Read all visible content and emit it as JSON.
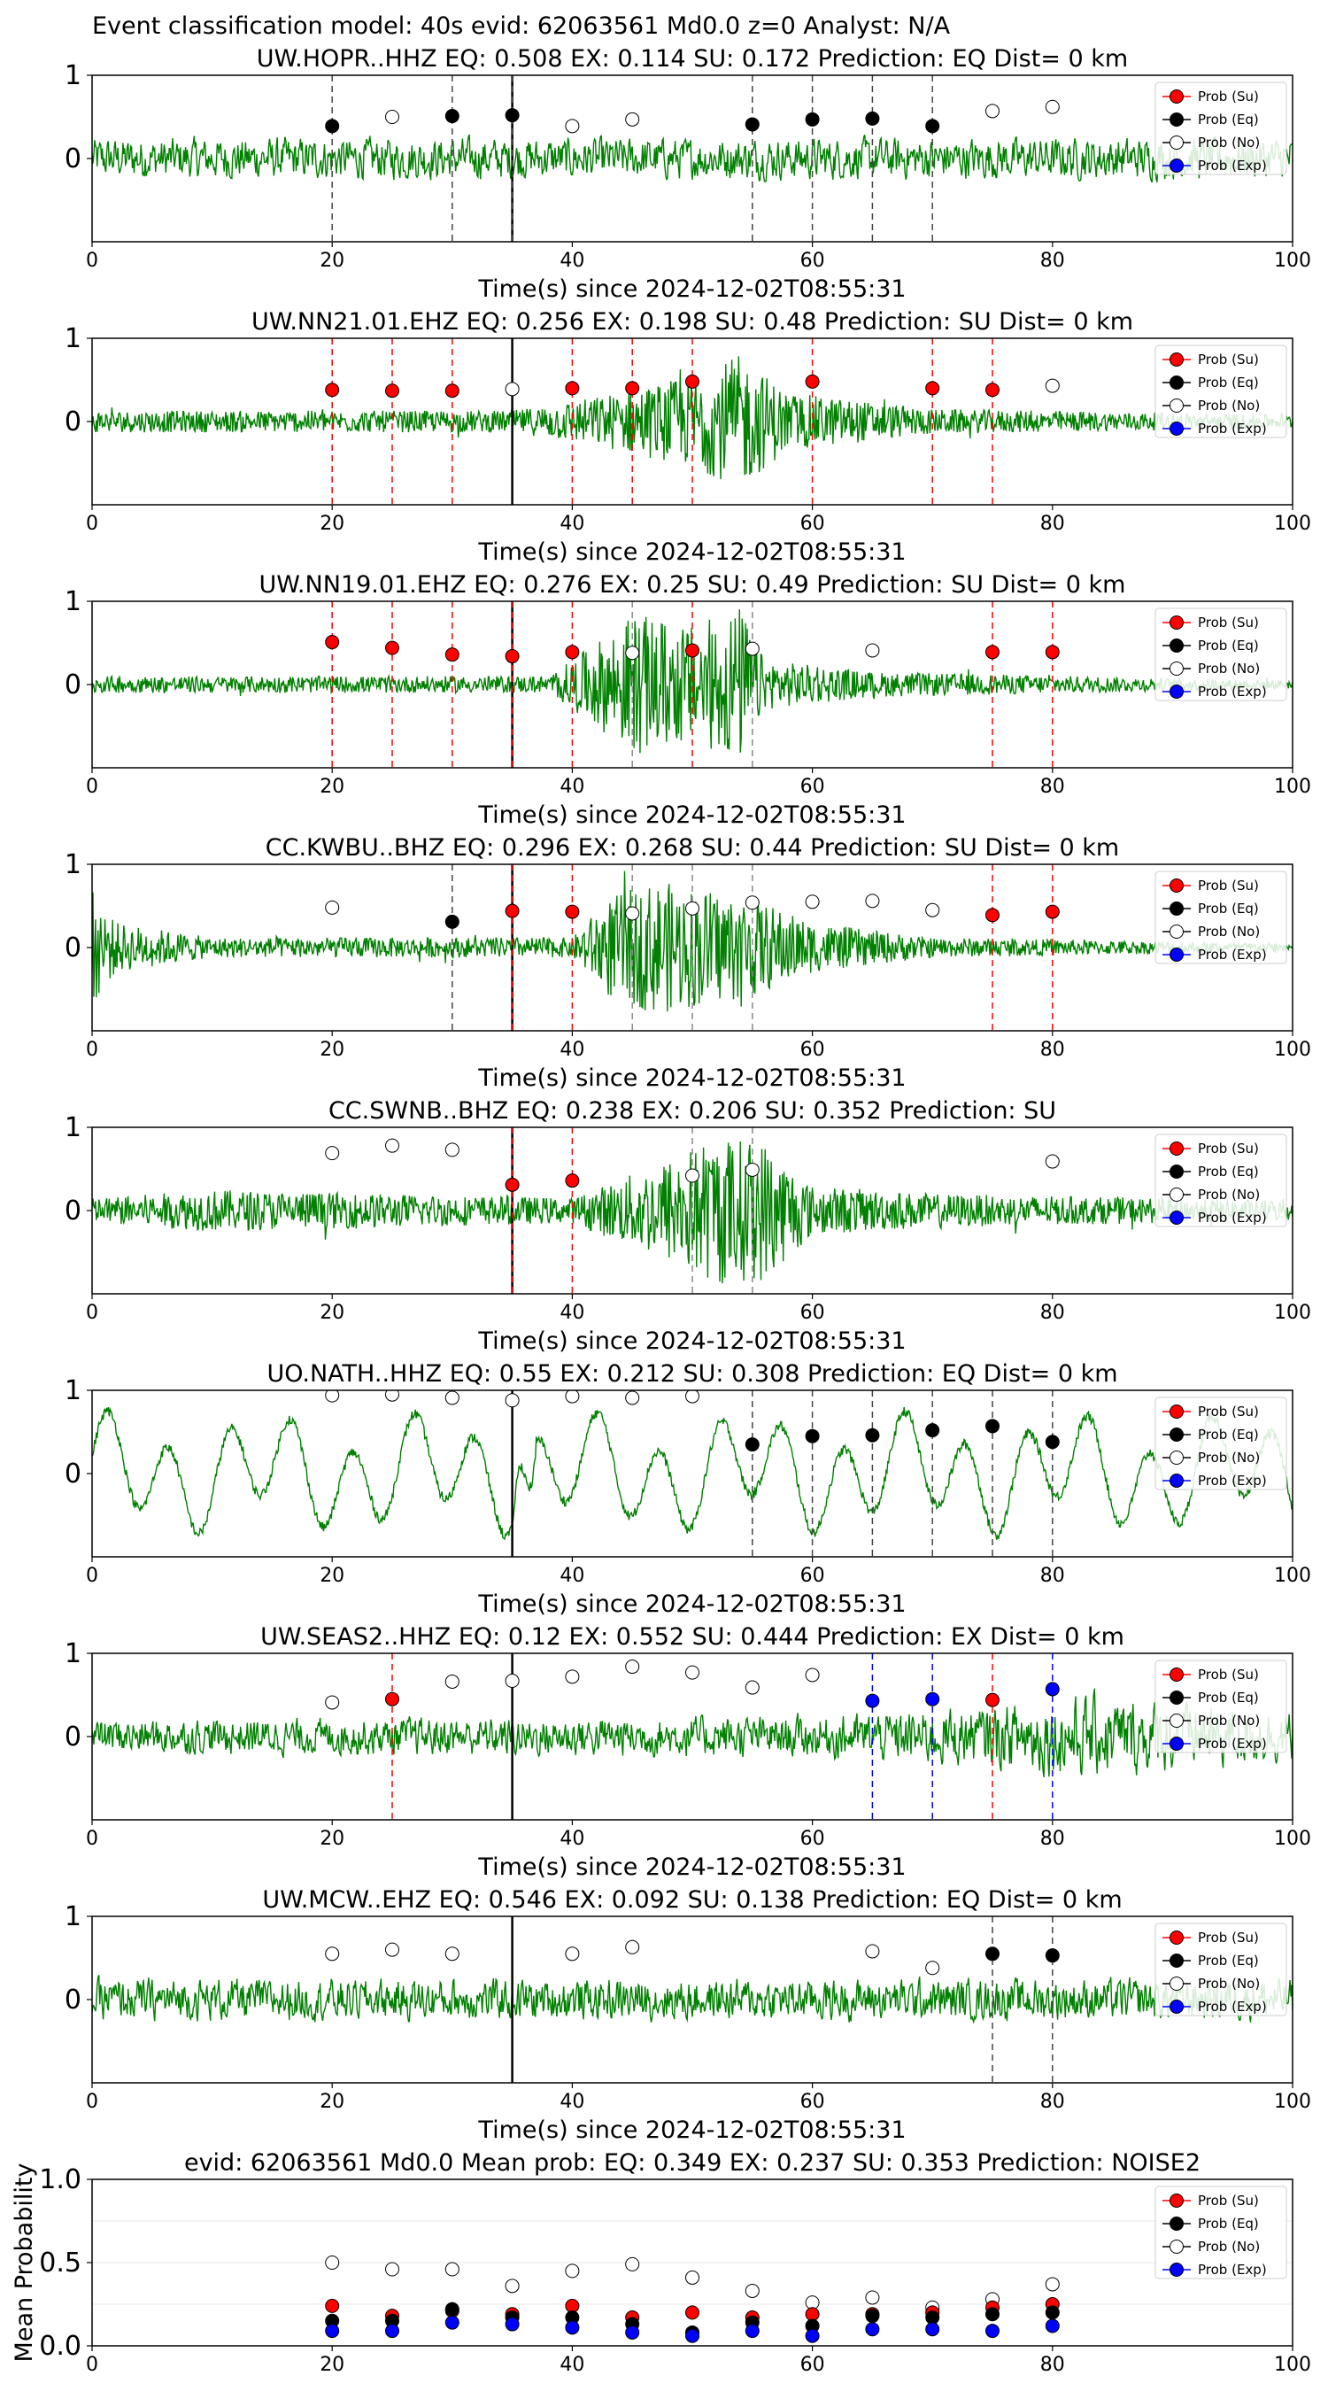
{
  "figure_title": "Event classification model: 40s evid: 62063561 Md0.0 z=0 Analyst: N/A",
  "legend_labels": [
    "Prob (Su)",
    "Prob (Eq)",
    "Prob (No)",
    "Prob (Exp)"
  ],
  "colors": {
    "waveform": "#008000",
    "su": "#ff0000",
    "eq": "#000000",
    "no": "#ffffff",
    "exp": "#0000ff",
    "pick_line": "#000000"
  },
  "chart_data": [
    {
      "type": "line",
      "title": "UW.HOPR..HHZ   EQ: 0.508  EX: 0.114  SU: 0.172   Prediction: EQ    Dist= 0 km",
      "xlabel": "Time(s) since 2024-12-02T08:55:31",
      "ylabel": "",
      "xlim": [
        0,
        100
      ],
      "ylim": [
        -1,
        1
      ],
      "x_ticks": [
        "0",
        "20",
        "40",
        "60",
        "80",
        "100"
      ],
      "y_ticks": [
        "0",
        "1"
      ],
      "pick_time": 35,
      "waveform": {
        "style": "noise",
        "envelope": []
      },
      "points": [
        {
          "x": 20,
          "y": 0.39,
          "class": "eq",
          "line": true
        },
        {
          "x": 25,
          "y": 0.5,
          "class": "no",
          "line": false
        },
        {
          "x": 30,
          "y": 0.51,
          "class": "eq",
          "line": true
        },
        {
          "x": 35,
          "y": 0.52,
          "class": "eq",
          "line": true
        },
        {
          "x": 40,
          "y": 0.39,
          "class": "no",
          "line": false
        },
        {
          "x": 45,
          "y": 0.47,
          "class": "no",
          "line": false
        },
        {
          "x": 55,
          "y": 0.41,
          "class": "eq",
          "line": true
        },
        {
          "x": 60,
          "y": 0.47,
          "class": "eq",
          "line": true
        },
        {
          "x": 65,
          "y": 0.48,
          "class": "eq",
          "line": true
        },
        {
          "x": 70,
          "y": 0.39,
          "class": "eq",
          "line": true
        },
        {
          "x": 75,
          "y": 0.57,
          "class": "no",
          "line": false
        },
        {
          "x": 80,
          "y": 0.62,
          "class": "no",
          "line": false
        }
      ]
    },
    {
      "type": "line",
      "title": "UW.NN21.01.EHZ   EQ: 0.256  EX: 0.198  SU: 0.48   Prediction: SU    Dist= 0 km",
      "xlabel": "Time(s) since 2024-12-02T08:55:31",
      "ylabel": "",
      "xlim": [
        0,
        100
      ],
      "ylim": [
        -1,
        1
      ],
      "x_ticks": [
        "0",
        "20",
        "40",
        "60",
        "80",
        "100"
      ],
      "y_ticks": [
        "0",
        "1"
      ],
      "pick_time": 35,
      "waveform": {
        "style": "burst",
        "envelope": [
          [
            0,
            0.13
          ],
          [
            35,
            0.13
          ],
          [
            42,
            0.3
          ],
          [
            50,
            0.55
          ],
          [
            54,
            0.8
          ],
          [
            58,
            0.35
          ],
          [
            70,
            0.15
          ],
          [
            100,
            0.08
          ]
        ]
      },
      "points": [
        {
          "x": 20,
          "y": 0.38,
          "class": "su",
          "line": true
        },
        {
          "x": 25,
          "y": 0.37,
          "class": "su",
          "line": true
        },
        {
          "x": 30,
          "y": 0.37,
          "class": "su",
          "line": true
        },
        {
          "x": 35,
          "y": 0.39,
          "class": "no",
          "line": false
        },
        {
          "x": 40,
          "y": 0.4,
          "class": "su",
          "line": true
        },
        {
          "x": 45,
          "y": 0.4,
          "class": "su",
          "line": true
        },
        {
          "x": 50,
          "y": 0.48,
          "class": "su",
          "line": true
        },
        {
          "x": 60,
          "y": 0.48,
          "class": "su",
          "line": true
        },
        {
          "x": 70,
          "y": 0.4,
          "class": "su",
          "line": true
        },
        {
          "x": 75,
          "y": 0.38,
          "class": "su",
          "line": true
        },
        {
          "x": 80,
          "y": 0.43,
          "class": "no",
          "line": false
        }
      ]
    },
    {
      "type": "line",
      "title": "UW.NN19.01.EHZ   EQ: 0.276  EX: 0.25  SU: 0.49   Prediction: SU    Dist= 0 km",
      "xlabel": "Time(s) since 2024-12-02T08:55:31",
      "ylabel": "",
      "xlim": [
        0,
        100
      ],
      "ylim": [
        -1,
        1
      ],
      "x_ticks": [
        "0",
        "20",
        "40",
        "60",
        "80",
        "100"
      ],
      "y_ticks": [
        "0",
        "1"
      ],
      "pick_time": 35,
      "waveform": {
        "style": "burst",
        "envelope": [
          [
            0,
            0.1
          ],
          [
            38,
            0.1
          ],
          [
            42,
            0.5
          ],
          [
            45,
            0.85
          ],
          [
            50,
            0.7
          ],
          [
            54,
            0.95
          ],
          [
            56,
            0.3
          ],
          [
            65,
            0.15
          ],
          [
            100,
            0.05
          ]
        ]
      },
      "points": [
        {
          "x": 20,
          "y": 0.51,
          "class": "su",
          "line": true
        },
        {
          "x": 25,
          "y": 0.44,
          "class": "su",
          "line": true
        },
        {
          "x": 30,
          "y": 0.36,
          "class": "su",
          "line": true
        },
        {
          "x": 35,
          "y": 0.34,
          "class": "su",
          "line": true
        },
        {
          "x": 40,
          "y": 0.39,
          "class": "su",
          "line": true
        },
        {
          "x": 45,
          "y": 0.38,
          "class": "no",
          "line": true
        },
        {
          "x": 50,
          "y": 0.41,
          "class": "su",
          "line": true
        },
        {
          "x": 55,
          "y": 0.43,
          "class": "no",
          "line": true
        },
        {
          "x": 65,
          "y": 0.41,
          "class": "no",
          "line": false
        },
        {
          "x": 75,
          "y": 0.39,
          "class": "su",
          "line": true
        },
        {
          "x": 80,
          "y": 0.39,
          "class": "su",
          "line": true
        }
      ]
    },
    {
      "type": "line",
      "title": "CC.KWBU..BHZ   EQ: 0.296  EX: 0.268  SU: 0.44   Prediction: SU    Dist= 0 km",
      "xlabel": "Time(s) since 2024-12-02T08:55:31",
      "ylabel": "",
      "xlim": [
        0,
        100
      ],
      "ylim": [
        -1,
        1
      ],
      "x_ticks": [
        "0",
        "20",
        "40",
        "60",
        "80",
        "100"
      ],
      "y_ticks": [
        "0",
        "1"
      ],
      "pick_time": 35,
      "waveform": {
        "style": "burst",
        "envelope": [
          [
            0,
            0.7
          ],
          [
            2,
            0.3
          ],
          [
            10,
            0.12
          ],
          [
            40,
            0.12
          ],
          [
            43,
            0.6
          ],
          [
            47,
            0.8
          ],
          [
            55,
            0.6
          ],
          [
            60,
            0.3
          ],
          [
            70,
            0.12
          ],
          [
            100,
            0.05
          ]
        ]
      },
      "points": [
        {
          "x": 20,
          "y": 0.48,
          "class": "no",
          "line": false
        },
        {
          "x": 30,
          "y": 0.31,
          "class": "eq",
          "line": true
        },
        {
          "x": 35,
          "y": 0.44,
          "class": "su",
          "line": true
        },
        {
          "x": 40,
          "y": 0.43,
          "class": "su",
          "line": true
        },
        {
          "x": 45,
          "y": 0.41,
          "class": "no",
          "line": true
        },
        {
          "x": 50,
          "y": 0.47,
          "class": "no",
          "line": true
        },
        {
          "x": 55,
          "y": 0.54,
          "class": "no",
          "line": true
        },
        {
          "x": 60,
          "y": 0.55,
          "class": "no",
          "line": false
        },
        {
          "x": 65,
          "y": 0.56,
          "class": "no",
          "line": false
        },
        {
          "x": 70,
          "y": 0.45,
          "class": "no",
          "line": false
        },
        {
          "x": 75,
          "y": 0.39,
          "class": "su",
          "line": true
        },
        {
          "x": 80,
          "y": 0.43,
          "class": "su",
          "line": true
        }
      ]
    },
    {
      "type": "line",
      "title": "CC.SWNB..BHZ   EQ: 0.238  EX: 0.206  SU: 0.352   Prediction: SU",
      "xlabel": "Time(s) since 2024-12-02T08:55:31",
      "ylabel": "",
      "xlim": [
        0,
        100
      ],
      "ylim": [
        -1,
        1
      ],
      "x_ticks": [
        "0",
        "20",
        "40",
        "60",
        "80",
        "100"
      ],
      "y_ticks": [
        "0",
        "1"
      ],
      "pick_time": 35,
      "waveform": {
        "style": "burst",
        "envelope": [
          [
            0,
            0.15
          ],
          [
            10,
            0.25
          ],
          [
            40,
            0.15
          ],
          [
            46,
            0.5
          ],
          [
            52,
            0.9
          ],
          [
            56,
            0.85
          ],
          [
            60,
            0.3
          ],
          [
            70,
            0.2
          ],
          [
            100,
            0.12
          ]
        ]
      },
      "points": [
        {
          "x": 20,
          "y": 0.69,
          "class": "no",
          "line": false
        },
        {
          "x": 25,
          "y": 0.78,
          "class": "no",
          "line": false
        },
        {
          "x": 30,
          "y": 0.73,
          "class": "no",
          "line": false
        },
        {
          "x": 35,
          "y": 0.31,
          "class": "su",
          "line": true
        },
        {
          "x": 40,
          "y": 0.36,
          "class": "su",
          "line": true
        },
        {
          "x": 50,
          "y": 0.42,
          "class": "no",
          "line": true
        },
        {
          "x": 55,
          "y": 0.49,
          "class": "no",
          "line": true
        },
        {
          "x": 80,
          "y": 0.59,
          "class": "no",
          "line": false
        }
      ]
    },
    {
      "type": "line",
      "title": "UO.NATH..HHZ   EQ: 0.55  EX: 0.212  SU: 0.308   Prediction: EQ    Dist= 0 km",
      "xlabel": "Time(s) since 2024-12-02T08:55:31",
      "ylabel": "",
      "xlim": [
        0,
        100
      ],
      "ylim": [
        -1,
        1
      ],
      "x_ticks": [
        "0",
        "20",
        "40",
        "60",
        "80",
        "100"
      ],
      "y_ticks": [
        "0",
        "1"
      ],
      "pick_time": 35,
      "waveform": {
        "style": "longperiod",
        "envelope": []
      },
      "points": [
        {
          "x": 20,
          "y": 0.94,
          "class": "no",
          "line": false
        },
        {
          "x": 25,
          "y": 0.95,
          "class": "no",
          "line": false
        },
        {
          "x": 30,
          "y": 0.91,
          "class": "no",
          "line": false
        },
        {
          "x": 35,
          "y": 0.88,
          "class": "no",
          "line": false
        },
        {
          "x": 40,
          "y": 0.93,
          "class": "no",
          "line": false
        },
        {
          "x": 45,
          "y": 0.91,
          "class": "no",
          "line": false
        },
        {
          "x": 50,
          "y": 0.93,
          "class": "no",
          "line": false
        },
        {
          "x": 55,
          "y": 0.35,
          "class": "eq",
          "line": true
        },
        {
          "x": 60,
          "y": 0.45,
          "class": "eq",
          "line": true
        },
        {
          "x": 65,
          "y": 0.46,
          "class": "eq",
          "line": true
        },
        {
          "x": 70,
          "y": 0.52,
          "class": "eq",
          "line": true
        },
        {
          "x": 75,
          "y": 0.57,
          "class": "eq",
          "line": true
        },
        {
          "x": 80,
          "y": 0.38,
          "class": "eq",
          "line": true
        }
      ]
    },
    {
      "type": "line",
      "title": "UW.SEAS2..HHZ   EQ: 0.12  EX: 0.552  SU: 0.444   Prediction: EX    Dist= 0 km",
      "xlabel": "Time(s) since 2024-12-02T08:55:31",
      "ylabel": "",
      "xlim": [
        0,
        100
      ],
      "ylim": [
        -1,
        1
      ],
      "x_ticks": [
        "0",
        "20",
        "40",
        "60",
        "80",
        "100"
      ],
      "y_ticks": [
        "0",
        "1"
      ],
      "pick_time": 35,
      "waveform": {
        "style": "noise",
        "envelope": [
          [
            0,
            0.25
          ],
          [
            60,
            0.3
          ],
          [
            75,
            0.45
          ],
          [
            82,
            0.6
          ],
          [
            100,
            0.35
          ]
        ]
      },
      "points": [
        {
          "x": 20,
          "y": 0.41,
          "class": "no",
          "line": false
        },
        {
          "x": 25,
          "y": 0.45,
          "class": "su",
          "line": true
        },
        {
          "x": 30,
          "y": 0.66,
          "class": "no",
          "line": false
        },
        {
          "x": 35,
          "y": 0.67,
          "class": "no",
          "line": false
        },
        {
          "x": 40,
          "y": 0.72,
          "class": "no",
          "line": false
        },
        {
          "x": 45,
          "y": 0.84,
          "class": "no",
          "line": false
        },
        {
          "x": 50,
          "y": 0.77,
          "class": "no",
          "line": false
        },
        {
          "x": 55,
          "y": 0.59,
          "class": "no",
          "line": false
        },
        {
          "x": 60,
          "y": 0.74,
          "class": "no",
          "line": false
        },
        {
          "x": 65,
          "y": 0.43,
          "class": "exp",
          "line": true
        },
        {
          "x": 70,
          "y": 0.45,
          "class": "exp",
          "line": true
        },
        {
          "x": 75,
          "y": 0.44,
          "class": "su",
          "line": true
        },
        {
          "x": 80,
          "y": 0.57,
          "class": "exp",
          "line": true
        }
      ]
    },
    {
      "type": "line",
      "title": "UW.MCW..EHZ   EQ: 0.546  EX: 0.092  SU: 0.138   Prediction: EQ    Dist= 0 km",
      "xlabel": "Time(s) since 2024-12-02T08:55:31",
      "ylabel": "",
      "xlim": [
        0,
        100
      ],
      "ylim": [
        -1,
        1
      ],
      "x_ticks": [
        "0",
        "20",
        "40",
        "60",
        "80",
        "100"
      ],
      "y_ticks": [
        "0",
        "1"
      ],
      "pick_time": 35,
      "waveform": {
        "style": "noise",
        "envelope": [
          [
            0,
            0.3
          ],
          [
            100,
            0.3
          ]
        ]
      },
      "points": [
        {
          "x": 20,
          "y": 0.55,
          "class": "no",
          "line": false
        },
        {
          "x": 25,
          "y": 0.6,
          "class": "no",
          "line": false
        },
        {
          "x": 30,
          "y": 0.55,
          "class": "no",
          "line": false
        },
        {
          "x": 40,
          "y": 0.55,
          "class": "no",
          "line": false
        },
        {
          "x": 45,
          "y": 0.63,
          "class": "no",
          "line": false
        },
        {
          "x": 65,
          "y": 0.58,
          "class": "no",
          "line": false
        },
        {
          "x": 70,
          "y": 0.38,
          "class": "no",
          "line": false
        },
        {
          "x": 75,
          "y": 0.55,
          "class": "eq",
          "line": true
        },
        {
          "x": 80,
          "y": 0.53,
          "class": "eq",
          "line": true
        }
      ]
    },
    {
      "type": "scatter",
      "title": "evid: 62063561  Md0.0   Mean prob:    EQ: 0.349  EX: 0.237  SU: 0.353   Prediction: NOISE2",
      "xlabel": "",
      "ylabel": "Mean Probability",
      "xlim": [
        0,
        100
      ],
      "ylim": [
        0,
        1
      ],
      "x_ticks": [
        "0",
        "20",
        "40",
        "60",
        "80",
        "100"
      ],
      "y_ticks": [
        "0.0",
        "0.5",
        "1.0"
      ],
      "x": [
        20,
        25,
        30,
        35,
        40,
        45,
        50,
        55,
        60,
        65,
        70,
        75,
        80
      ],
      "series": [
        {
          "name": "Prob (No)",
          "class": "no",
          "values": [
            0.5,
            0.46,
            0.46,
            0.36,
            0.45,
            0.49,
            0.41,
            0.33,
            0.26,
            0.29,
            0.23,
            0.28,
            0.37
          ]
        },
        {
          "name": "Prob (Su)",
          "class": "su",
          "values": [
            0.24,
            0.18,
            0.21,
            0.19,
            0.24,
            0.17,
            0.2,
            0.17,
            0.19,
            0.19,
            0.2,
            0.23,
            0.25
          ]
        },
        {
          "name": "Prob (Eq)",
          "class": "eq",
          "values": [
            0.15,
            0.15,
            0.22,
            0.17,
            0.17,
            0.13,
            0.08,
            0.14,
            0.12,
            0.18,
            0.17,
            0.19,
            0.2
          ]
        },
        {
          "name": "Prob (Exp)",
          "class": "exp",
          "values": [
            0.09,
            0.09,
            0.14,
            0.13,
            0.11,
            0.08,
            0.06,
            0.09,
            0.06,
            0.1,
            0.1,
            0.09,
            0.12
          ]
        }
      ]
    }
  ]
}
